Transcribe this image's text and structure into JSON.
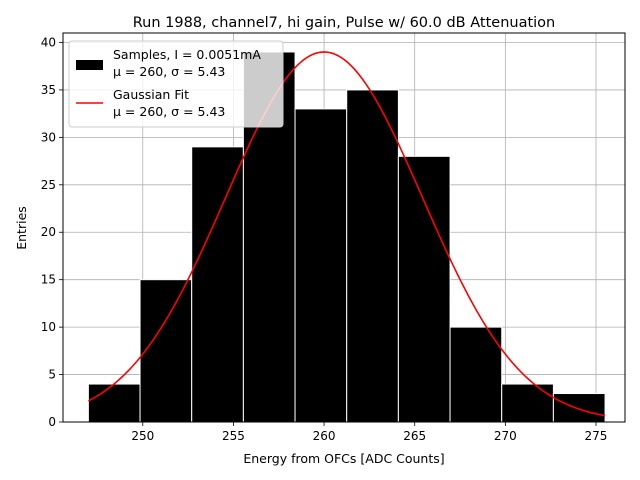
{
  "chart_data": {
    "type": "bar",
    "title": "Run 1988, channel7, hi gain, Pulse w/ 60.0 dB Attenuation",
    "xlabel": "Energy from OFCs [ADC Counts]",
    "ylabel": "Entries",
    "xlim": [
      245.6,
      276.6
    ],
    "ylim": [
      0,
      41
    ],
    "xticks": [
      250,
      255,
      260,
      265,
      270,
      275
    ],
    "yticks": [
      0,
      5,
      10,
      15,
      20,
      25,
      30,
      35,
      40
    ],
    "grid": true,
    "legend_position": "top-left",
    "bins": [
      {
        "x0": 247.0,
        "x1": 249.85,
        "count": 4
      },
      {
        "x0": 249.85,
        "x1": 252.7,
        "count": 15
      },
      {
        "x0": 252.7,
        "x1": 255.55,
        "count": 29
      },
      {
        "x0": 255.55,
        "x1": 258.4,
        "count": 39
      },
      {
        "x0": 258.4,
        "x1": 261.25,
        "count": 33
      },
      {
        "x0": 261.25,
        "x1": 264.1,
        "count": 35
      },
      {
        "x0": 264.1,
        "x1": 266.95,
        "count": 28
      },
      {
        "x0": 266.95,
        "x1": 269.8,
        "count": 10
      },
      {
        "x0": 269.8,
        "x1": 272.65,
        "count": 4
      },
      {
        "x0": 272.65,
        "x1": 275.5,
        "count": 3
      }
    ],
    "series": [
      {
        "name": "Samples, I = 0.0051mA",
        "stats": "μ = 260, σ = 5.43",
        "kind": "histogram",
        "color": "#000000"
      },
      {
        "name": "Gaussian Fit",
        "stats": "μ = 260, σ = 5.43",
        "kind": "line",
        "color": "#ff0000",
        "fit": {
          "mu": 260.0,
          "sigma": 5.43,
          "amplitude": 39.0,
          "x_start": 247.0,
          "x_end": 275.5
        }
      }
    ]
  }
}
